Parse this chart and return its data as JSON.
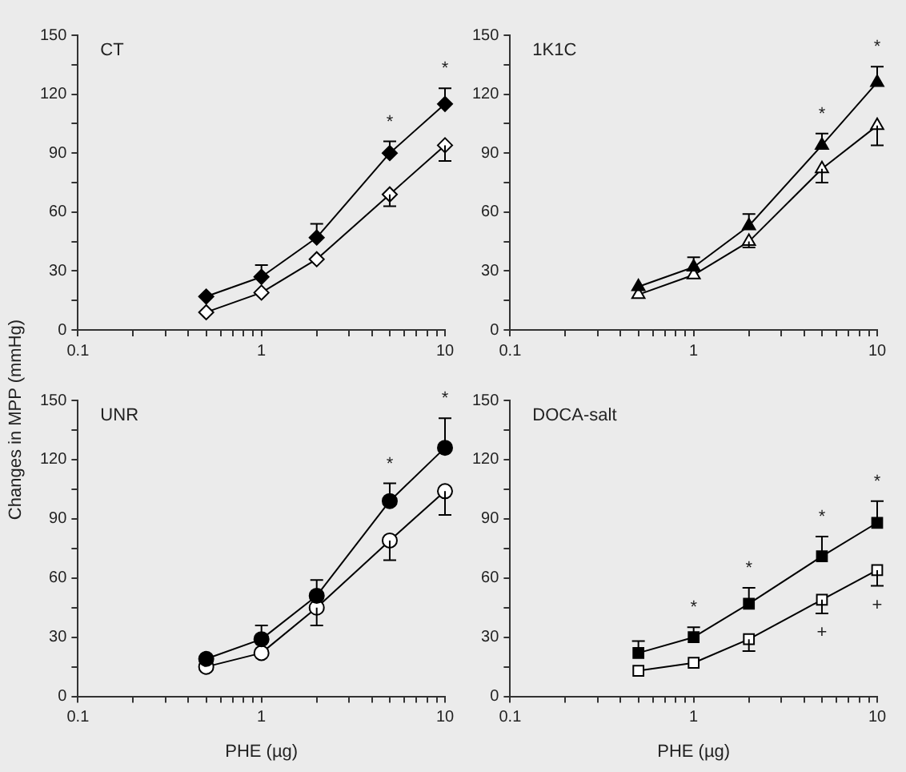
{
  "chart_data": [
    {
      "type": "line",
      "title": "CT",
      "ylabel": "Changes in MPP (mmHg)",
      "x": [
        0.5,
        1,
        2,
        5,
        10
      ],
      "log": "x",
      "grid": false,
      "legend": false,
      "xlim": [
        0.1,
        10
      ],
      "xticks": [
        0.1,
        {
          "value": 0.2,
          "label": null
        },
        {
          "value": 0.3,
          "label": null
        },
        {
          "value": 0.4,
          "label": null
        },
        {
          "value": 0.5,
          "label": null
        },
        {
          "value": 0.6,
          "label": null
        },
        {
          "value": 0.7,
          "label": null
        },
        {
          "value": 0.8,
          "label": null
        },
        {
          "value": 0.9,
          "label": null
        },
        1,
        {
          "value": 2,
          "label": null
        },
        {
          "value": 3,
          "label": null
        },
        {
          "value": 4,
          "label": null
        },
        {
          "value": 5,
          "label": null
        },
        {
          "value": 6,
          "label": null
        },
        {
          "value": 7,
          "label": null
        },
        {
          "value": 8,
          "label": null
        },
        {
          "value": 9,
          "label": null
        },
        10
      ],
      "ylim": [
        0,
        150
      ],
      "yticks": [
        0,
        {
          "value": 15,
          "label": null
        },
        30,
        {
          "value": 45,
          "label": null
        },
        60,
        {
          "value": 75,
          "label": null
        },
        90,
        {
          "value": 105,
          "label": null
        },
        120,
        {
          "value": 135,
          "label": null
        },
        150
      ],
      "series": [
        {
          "color": "#000000",
          "marker": "diamond",
          "values": [
            17,
            27,
            47,
            90,
            115
          ],
          "errors": [
            null,
            [
              27,
              33
            ],
            [
              47,
              54
            ],
            [
              90,
              96
            ],
            [
              115,
              123
            ]
          ]
        },
        {
          "color": "#ffffff",
          "marker": "diamond",
          "values": [
            9,
            19,
            36,
            69,
            94
          ],
          "errors": [
            null,
            null,
            null,
            [
              63,
              69
            ],
            [
              86,
              94
            ]
          ]
        }
      ],
      "annotations": [
        {
          "text": "*",
          "x": 5,
          "y": 90
        },
        {
          "text": "*",
          "x": 10,
          "y": 115
        }
      ]
    },
    {
      "type": "line",
      "title": "1K1C",
      "x": [
        0.5,
        1,
        2,
        5,
        10
      ],
      "log": "x",
      "grid": false,
      "legend": false,
      "xlim": [
        0.1,
        10
      ],
      "xticks": [
        0.1,
        {
          "value": 0.2,
          "label": null
        },
        {
          "value": 0.3,
          "label": null
        },
        {
          "value": 0.4,
          "label": null
        },
        {
          "value": 0.5,
          "label": null
        },
        {
          "value": 0.6,
          "label": null
        },
        {
          "value": 0.7,
          "label": null
        },
        {
          "value": 0.8,
          "label": null
        },
        {
          "value": 0.9,
          "label": null
        },
        1,
        {
          "value": 2,
          "label": null
        },
        {
          "value": 3,
          "label": null
        },
        {
          "value": 4,
          "label": null
        },
        {
          "value": 5,
          "label": null
        },
        {
          "value": 6,
          "label": null
        },
        {
          "value": 7,
          "label": null
        },
        {
          "value": 8,
          "label": null
        },
        {
          "value": 9,
          "label": null
        },
        10
      ],
      "ylim": [
        0,
        150
      ],
      "yticks": [
        0,
        {
          "value": 15,
          "label": null
        },
        30,
        {
          "value": 45,
          "label": null
        },
        60,
        {
          "value": 75,
          "label": null
        },
        90,
        {
          "value": 105,
          "label": null
        },
        120,
        {
          "value": 135,
          "label": null
        },
        150
      ],
      "series": [
        {
          "color": "#000000",
          "marker": "triangle",
          "values": [
            22,
            32,
            53,
            94,
            126
          ],
          "errors": [
            null,
            [
              32,
              37
            ],
            [
              53,
              59
            ],
            [
              94,
              100
            ],
            [
              126,
              134
            ]
          ]
        },
        {
          "color": "#ffffff",
          "marker": "triangle",
          "values": [
            18,
            28,
            45,
            82,
            104
          ],
          "errors": [
            null,
            null,
            [
              42,
              45
            ],
            [
              75,
              82
            ],
            [
              94,
              104
            ]
          ]
        }
      ],
      "annotations": [
        {
          "text": "*",
          "x": 5,
          "y": 94
        },
        {
          "text": "*",
          "x": 10,
          "y": 126
        }
      ]
    },
    {
      "type": "line",
      "title": "UNR",
      "xlabel": "PHE (µg)",
      "x": [
        0.5,
        1,
        2,
        5,
        10
      ],
      "log": "x",
      "grid": false,
      "legend": false,
      "xlim": [
        0.1,
        10
      ],
      "xticks": [
        0.1,
        {
          "value": 0.2,
          "label": null
        },
        {
          "value": 0.3,
          "label": null
        },
        {
          "value": 0.4,
          "label": null
        },
        {
          "value": 0.5,
          "label": null
        },
        {
          "value": 0.6,
          "label": null
        },
        {
          "value": 0.7,
          "label": null
        },
        {
          "value": 0.8,
          "label": null
        },
        {
          "value": 0.9,
          "label": null
        },
        1,
        {
          "value": 2,
          "label": null
        },
        {
          "value": 3,
          "label": null
        },
        {
          "value": 4,
          "label": null
        },
        {
          "value": 5,
          "label": null
        },
        {
          "value": 6,
          "label": null
        },
        {
          "value": 7,
          "label": null
        },
        {
          "value": 8,
          "label": null
        },
        {
          "value": 9,
          "label": null
        },
        10
      ],
      "ylim": [
        0,
        150
      ],
      "yticks": [
        0,
        {
          "value": 15,
          "label": null
        },
        30,
        {
          "value": 45,
          "label": null
        },
        60,
        {
          "value": 75,
          "label": null
        },
        90,
        {
          "value": 105,
          "label": null
        },
        120,
        {
          "value": 135,
          "label": null
        },
        150
      ],
      "series": [
        {
          "color": "#000000",
          "marker": "circle",
          "values": [
            19,
            29,
            51,
            99,
            126
          ],
          "errors": [
            null,
            [
              29,
              36
            ],
            [
              51,
              59
            ],
            [
              99,
              108
            ],
            [
              126,
              141
            ]
          ]
        },
        {
          "color": "#ffffff",
          "marker": "circle",
          "values": [
            15,
            22,
            45,
            79,
            104
          ],
          "errors": [
            null,
            null,
            [
              36,
              45
            ],
            [
              69,
              79
            ],
            [
              92,
              104
            ]
          ]
        }
      ],
      "annotations": [
        {
          "text": "*",
          "x": 5,
          "y": 99
        },
        {
          "text": "*",
          "x": 10,
          "y": 126
        }
      ]
    },
    {
      "type": "line",
      "title": "DOCA-salt",
      "xlabel": "PHE (µg)",
      "x": [
        0.5,
        1,
        2,
        5,
        10
      ],
      "log": "x",
      "grid": false,
      "legend": false,
      "xlim": [
        0.1,
        10
      ],
      "xticks": [
        0.1,
        {
          "value": 0.2,
          "label": null
        },
        {
          "value": 0.3,
          "label": null
        },
        {
          "value": 0.4,
          "label": null
        },
        {
          "value": 0.5,
          "label": null
        },
        {
          "value": 0.6,
          "label": null
        },
        {
          "value": 0.7,
          "label": null
        },
        {
          "value": 0.8,
          "label": null
        },
        {
          "value": 0.9,
          "label": null
        },
        1,
        {
          "value": 2,
          "label": null
        },
        {
          "value": 3,
          "label": null
        },
        {
          "value": 4,
          "label": null
        },
        {
          "value": 5,
          "label": null
        },
        {
          "value": 6,
          "label": null
        },
        {
          "value": 7,
          "label": null
        },
        {
          "value": 8,
          "label": null
        },
        {
          "value": 9,
          "label": null
        },
        10
      ],
      "ylim": [
        0,
        150
      ],
      "yticks": [
        0,
        {
          "value": 15,
          "label": null
        },
        30,
        {
          "value": 45,
          "label": null
        },
        60,
        {
          "value": 75,
          "label": null
        },
        90,
        {
          "value": 105,
          "label": null
        },
        120,
        {
          "value": 135,
          "label": null
        },
        150
      ],
      "series": [
        {
          "color": "#000000",
          "marker": "square",
          "values": [
            22,
            30,
            47,
            71,
            88
          ],
          "errors": [
            [
              22,
              28
            ],
            [
              30,
              35
            ],
            [
              47,
              55
            ],
            [
              71,
              81
            ],
            [
              88,
              99
            ]
          ]
        },
        {
          "color": "#ffffff",
          "marker": "square",
          "values": [
            13,
            17,
            29,
            49,
            64
          ],
          "errors": [
            null,
            null,
            [
              23,
              29
            ],
            [
              42,
              49
            ],
            [
              56,
              64
            ]
          ]
        }
      ],
      "annotations": [
        {
          "text": "*",
          "x": 1,
          "y": 30
        },
        {
          "text": "*",
          "x": 2,
          "y": 47
        },
        {
          "text": "*",
          "x": 5,
          "y": 71
        },
        {
          "text": "*",
          "x": 10,
          "y": 88
        },
        {
          "text": "+",
          "x": 5,
          "y": 49
        },
        {
          "text": "+",
          "x": 10,
          "y": 64
        }
      ]
    }
  ]
}
